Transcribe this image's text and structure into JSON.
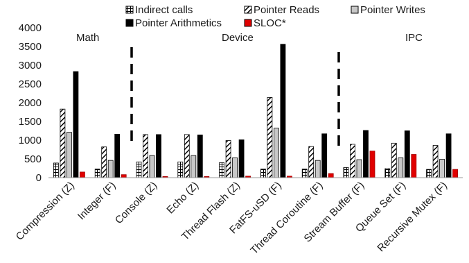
{
  "chart_data": {
    "type": "bar",
    "title": "",
    "xlabel": "",
    "ylabel": "",
    "ylim": [
      0,
      4000
    ],
    "yticks": [
      0,
      500,
      1000,
      1500,
      2000,
      2500,
      3000,
      3500,
      4000
    ],
    "grid": false,
    "legend_position": "top",
    "categories": [
      "Compression (Z)",
      "Integer (F)",
      "Console (Z)",
      "Echo (Z)",
      "Thread Flash (Z)",
      "FatFS-uSD (F)",
      "Thread Coroutine (F)",
      "Stream Buffer (F)",
      "Queue Set (F)",
      "Recursive Mutex (F)"
    ],
    "series": [
      {
        "name": "Indirect calls",
        "pattern": "grid",
        "color": "#ffffff",
        "values": [
          390,
          230,
          420,
          420,
          400,
          230,
          230,
          270,
          240,
          220
        ]
      },
      {
        "name": "Pointer Reads",
        "pattern": "diagonal",
        "color": "#ffffff",
        "values": [
          1830,
          820,
          1150,
          1150,
          990,
          2140,
          830,
          890,
          920,
          860
        ]
      },
      {
        "name": "Pointer Writes",
        "pattern": "solid",
        "color": "#c8c8c8",
        "values": [
          1210,
          460,
          590,
          590,
          530,
          1320,
          460,
          480,
          530,
          490
        ]
      },
      {
        "name": "Pointer Arithmetics",
        "pattern": "solid",
        "color": "#000000",
        "values": [
          2830,
          1160,
          1150,
          1140,
          1010,
          3560,
          1170,
          1260,
          1250,
          1170
        ]
      },
      {
        "name": "SLOC*",
        "pattern": "solid",
        "color": "#e00000",
        "values": [
          150,
          80,
          30,
          30,
          40,
          40,
          110,
          710,
          620,
          220
        ]
      }
    ],
    "annotations": {
      "groups": [
        "Math",
        "Device",
        "IPC"
      ]
    }
  }
}
